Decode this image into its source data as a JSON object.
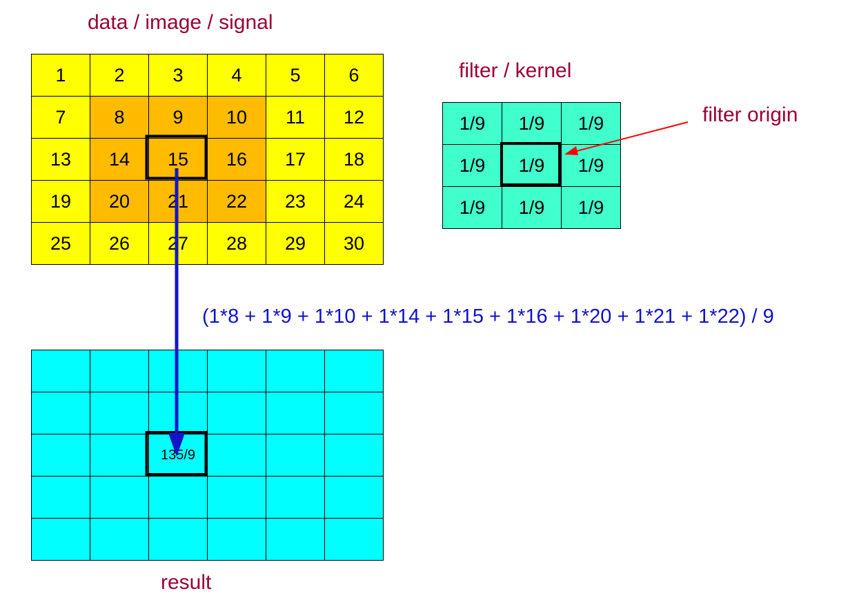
{
  "labels": {
    "data": "data / image / signal",
    "kernel": "filter / kernel",
    "origin": "filter origin",
    "formula": "(1*8 + 1*9 + 1*10 + 1*14 + 1*15 + 1*16 + 1*20 + 1*21 + 1*22) / 9",
    "result": "result"
  },
  "data_grid": [
    [
      "1",
      "2",
      "3",
      "4",
      "5",
      "6"
    ],
    [
      "7",
      "8",
      "9",
      "10",
      "11",
      "12"
    ],
    [
      "13",
      "14",
      "15",
      "16",
      "17",
      "18"
    ],
    [
      "19",
      "20",
      "21",
      "22",
      "23",
      "24"
    ],
    [
      "25",
      "26",
      "27",
      "28",
      "29",
      "30"
    ]
  ],
  "kernel_grid": [
    [
      "1/9",
      "1/9",
      "1/9"
    ],
    [
      "1/9",
      "1/9",
      "1/9"
    ],
    [
      "1/9",
      "1/9",
      "1/9"
    ]
  ],
  "result_grid": [
    [
      "",
      "",
      "",
      "",
      "",
      ""
    ],
    [
      "",
      "",
      "",
      "",
      "",
      ""
    ],
    [
      "",
      "",
      "135/9",
      "",
      "",
      ""
    ],
    [
      "",
      "",
      "",
      "",
      "",
      ""
    ],
    [
      "",
      "",
      "",
      "",
      "",
      ""
    ]
  ],
  "colors": {
    "label_text": "#990033",
    "formula_text": "#1010cc",
    "data_cell": "#ffff00",
    "neighborhood_cell": "#ffbb00",
    "kernel_cell": "#40ffcc",
    "result_cell": "#00ffff",
    "flow_arrow": "#1515c8",
    "origin_arrow": "#ff0000"
  }
}
